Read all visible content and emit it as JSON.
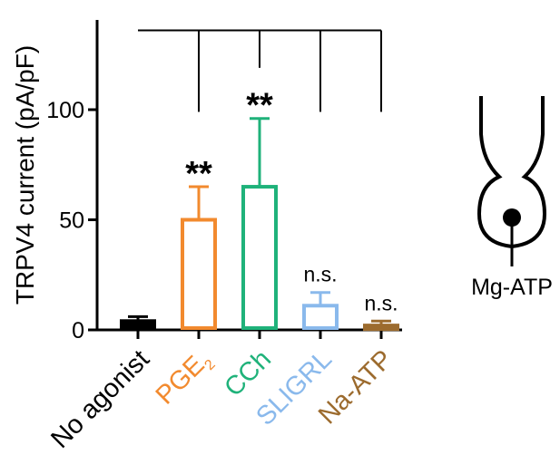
{
  "chart_data": {
    "type": "bar",
    "ylabel": "TRPV4 current (pA/pF)",
    "ylim": [
      0,
      135
    ],
    "yticks": [
      0,
      50,
      100
    ],
    "categories": [
      "No agonist",
      "PGE2",
      "CCh",
      "SLIGRL",
      "Na-ATP"
    ],
    "category_labels": [
      {
        "text": "No agonist",
        "sub": ""
      },
      {
        "text": "PGE",
        "sub": "2"
      },
      {
        "text": "CCh",
        "sub": ""
      },
      {
        "text": "SLIGRL",
        "sub": ""
      },
      {
        "text": "Na-ATP",
        "sub": ""
      }
    ],
    "values": [
      4,
      50,
      65,
      11,
      2
    ],
    "errors": [
      2,
      15,
      31,
      6,
      2
    ],
    "colors": [
      "#000000",
      "#f28a2e",
      "#1fb27a",
      "#8ab9ec",
      "#9c6b2e"
    ],
    "filled": [
      true,
      false,
      false,
      false,
      true
    ],
    "annotations": [
      "",
      "**",
      "**",
      "n.s.",
      "n.s."
    ],
    "comparison_reference": "No agonist",
    "inset_label": "Mg-ATP"
  }
}
